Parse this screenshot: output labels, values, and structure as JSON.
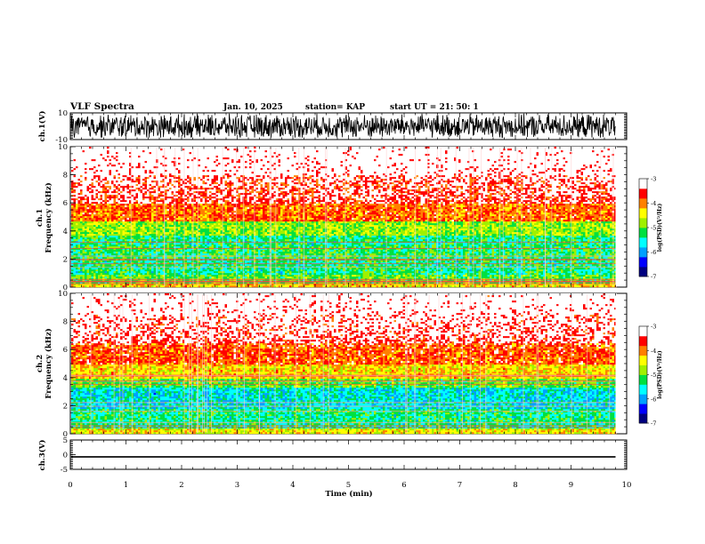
{
  "header": {
    "title": "VLF Spectra",
    "date": "Jan. 10, 2025",
    "station": "station= KAP",
    "start": "start UT =   21: 50: 1"
  },
  "chart_data": [
    {
      "type": "line",
      "name": "ch1-waveform",
      "ylabel": "ch.1(V)",
      "ylim": [
        -10,
        10
      ],
      "y_ticks": [
        "10",
        "-10"
      ],
      "xlim": [
        0,
        10
      ],
      "trace_amplitude_range": [
        -10,
        10
      ],
      "trace_end_min": 9.8
    },
    {
      "type": "heatmap",
      "name": "ch1-spectrogram",
      "ylabel_lines": [
        "ch.1",
        "Frequency (kHz)"
      ],
      "ylim": [
        0,
        10
      ],
      "y_ticks": [
        "0",
        "2",
        "4",
        "6",
        "8",
        "10"
      ],
      "xlim": [
        0,
        10
      ],
      "data_end_min": 9.8,
      "colorbar": {
        "label": "log(PSD)(V²/Hz)",
        "range": [
          -7,
          -3
        ],
        "ticks": [
          "-3",
          "-4",
          "-5",
          "-6",
          "-7"
        ],
        "colors": [
          "#000080",
          "#0000ff",
          "#00a0ff",
          "#00ffff",
          "#00e040",
          "#a0f000",
          "#ffff00",
          "#ff8000",
          "#ff0000",
          "#ffffff"
        ]
      },
      "frequency_bands_kHz": [
        {
          "from": 0.0,
          "to": 0.3,
          "level": -4.3
        },
        {
          "from": 0.3,
          "to": 1.0,
          "level": -5.0
        },
        {
          "from": 1.0,
          "to": 2.0,
          "level": -5.3
        },
        {
          "from": 2.0,
          "to": 3.0,
          "level": -5.2
        },
        {
          "from": 3.0,
          "to": 3.7,
          "level": -5.3
        },
        {
          "from": 3.7,
          "to": 4.8,
          "level": -4.8
        },
        {
          "from": 4.8,
          "to": 6.0,
          "level": -3.9
        },
        {
          "from": 6.0,
          "to": 8.0,
          "level": -3.5
        },
        {
          "from": 8.0,
          "to": 10.0,
          "level": -3.2
        }
      ]
    },
    {
      "type": "heatmap",
      "name": "ch2-spectrogram",
      "ylabel_lines": [
        "ch.2",
        "Frequency (kHz)"
      ],
      "ylim": [
        0,
        10
      ],
      "y_ticks": [
        "0",
        "2",
        "4",
        "6",
        "8",
        "10"
      ],
      "xlim": [
        0,
        10
      ],
      "data_end_min": 9.8,
      "colorbar": {
        "label": "log(PSD)(V²/Hz)",
        "range": [
          -7,
          -3
        ],
        "ticks": [
          "-3",
          "-4",
          "-5",
          "-6",
          "-7"
        ],
        "colors": [
          "#000080",
          "#0000ff",
          "#00a0ff",
          "#00ffff",
          "#00e040",
          "#a0f000",
          "#ffff00",
          "#ff8000",
          "#ff0000",
          "#ffffff"
        ]
      },
      "frequency_bands_kHz": [
        {
          "from": 0.0,
          "to": 0.5,
          "level": -4.4
        },
        {
          "from": 0.5,
          "to": 1.8,
          "level": -5.3
        },
        {
          "from": 1.8,
          "to": 3.3,
          "level": -5.6
        },
        {
          "from": 3.3,
          "to": 4.0,
          "level": -5.0
        },
        {
          "from": 4.0,
          "to": 5.0,
          "level": -4.3
        },
        {
          "from": 5.0,
          "to": 6.5,
          "level": -3.8
        },
        {
          "from": 6.5,
          "to": 8.5,
          "level": -3.4
        },
        {
          "from": 8.5,
          "to": 10.0,
          "level": -3.2
        }
      ]
    },
    {
      "type": "line",
      "name": "ch3-waveform",
      "ylabel": "ch.3(V)",
      "ylim": [
        -5,
        5
      ],
      "y_ticks": [
        "5",
        "0",
        "-5"
      ],
      "xlim": [
        0,
        10
      ],
      "trace_amplitude_range": [
        -1.0,
        -0.5
      ],
      "trace_end_min": 9.8
    }
  ],
  "x_axis": {
    "label": "Time (min)",
    "ticks": [
      "0",
      "1",
      "2",
      "3",
      "4",
      "5",
      "6",
      "7",
      "8",
      "9",
      "10"
    ]
  }
}
